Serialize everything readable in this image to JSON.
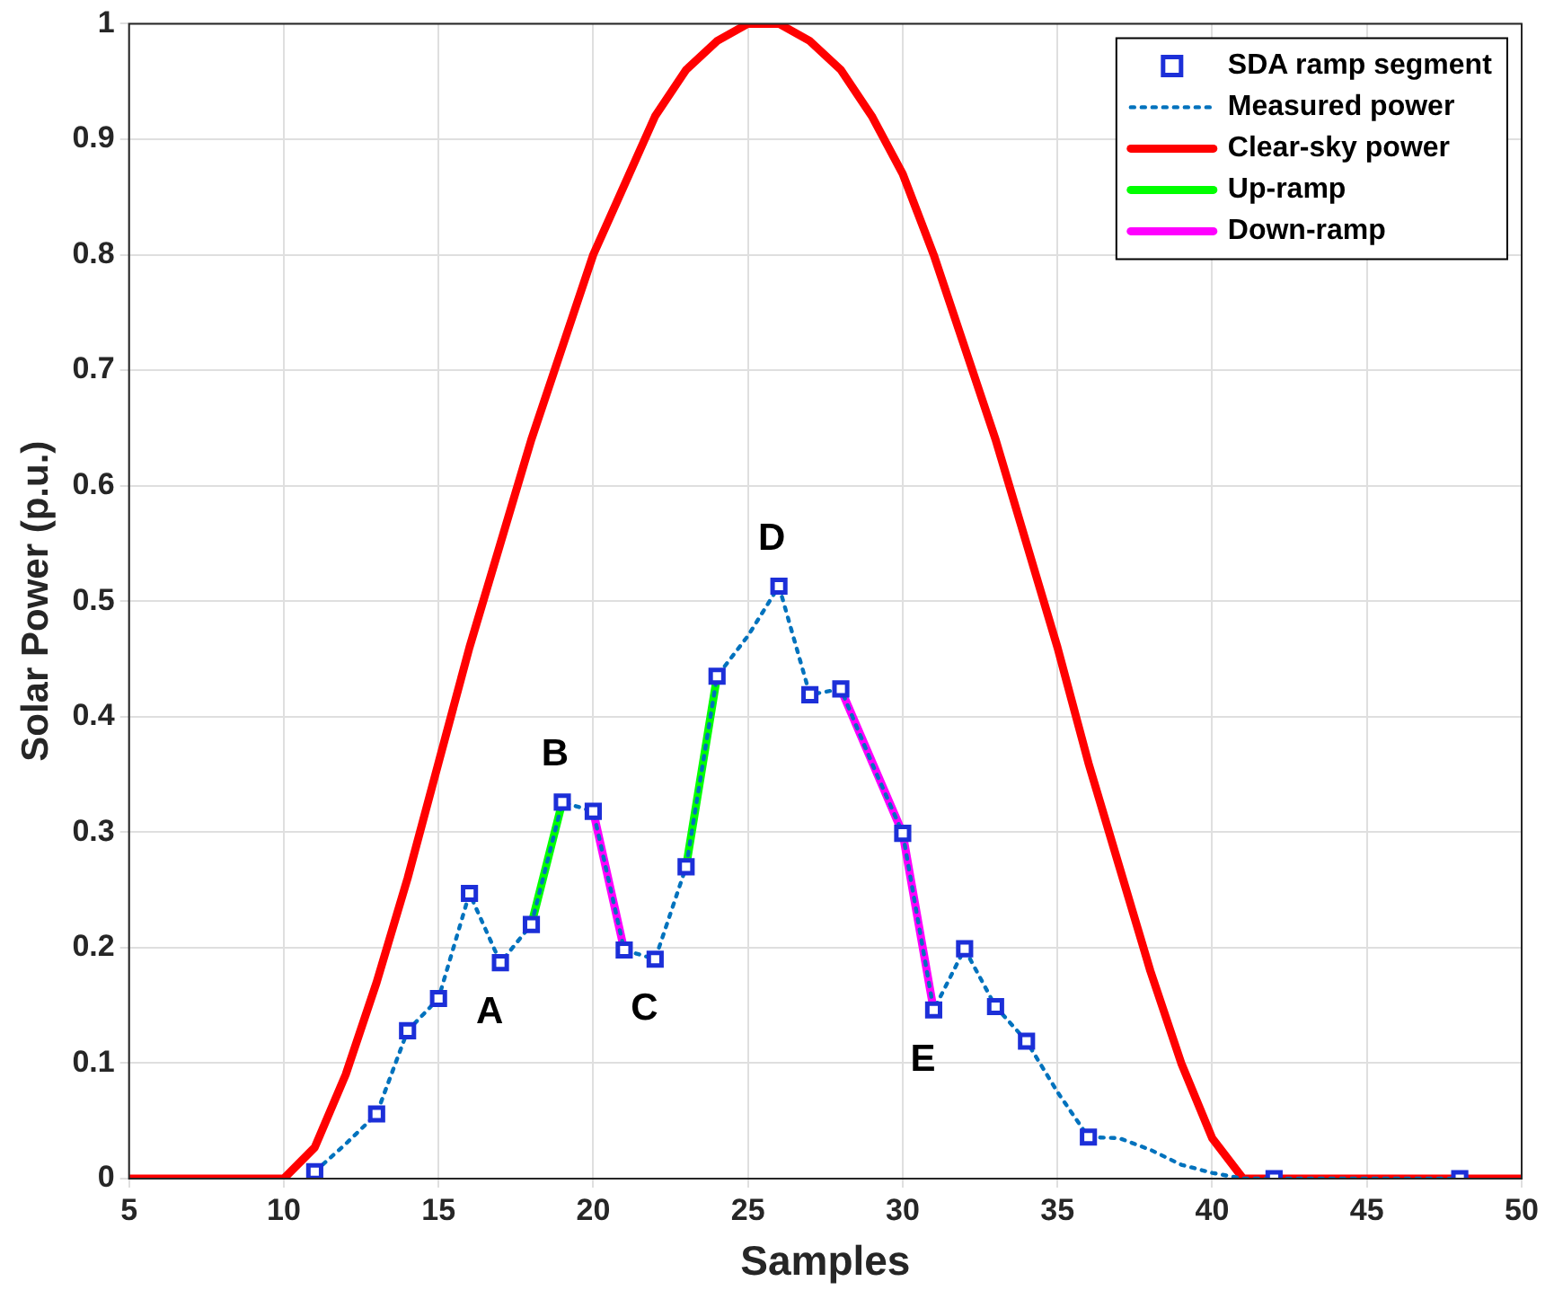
{
  "chart_data": {
    "type": "line",
    "xlabel": "Samples",
    "ylabel": "Solar Power (p.u.)",
    "xlim": [
      5,
      50
    ],
    "xticks": [
      5,
      10,
      15,
      20,
      25,
      30,
      35,
      40,
      45,
      50
    ],
    "ylim": [
      0,
      1
    ],
    "yticks": [
      0,
      0.1,
      0.2,
      0.3,
      0.4,
      0.5,
      0.6,
      0.7,
      0.8,
      0.9,
      1
    ],
    "grid": true,
    "legend": "top right",
    "series": [
      {
        "name": "SDA ramp segment",
        "type": "scatter",
        "marker": "square",
        "color": "#1c2fd8",
        "x": [
          11,
          13,
          14,
          15,
          16,
          17,
          18,
          19,
          20,
          21,
          22,
          23,
          24,
          26,
          27,
          28,
          30,
          31,
          32,
          33,
          34,
          36,
          42,
          48
        ],
        "values": [
          0.006,
          0.056,
          0.128,
          0.156,
          0.247,
          0.187,
          0.22,
          0.326,
          0.318,
          0.198,
          0.19,
          0.27,
          0.435,
          0.513,
          0.419,
          0.424,
          0.299,
          0.146,
          0.199,
          0.149,
          0.119,
          0.036,
          0,
          0
        ]
      },
      {
        "name": "Measured power",
        "type": "line",
        "line_style": "dotted",
        "marker": "none",
        "color": "#0072bd",
        "x": [
          11,
          12,
          13,
          14,
          15,
          16,
          17,
          18,
          19,
          20,
          21,
          22,
          23,
          24,
          25,
          26,
          27,
          28,
          29,
          30,
          31,
          32,
          33,
          34,
          35,
          36,
          37,
          38,
          39,
          40,
          41,
          42,
          48
        ],
        "values": [
          0.006,
          0.03,
          0.056,
          0.128,
          0.156,
          0.247,
          0.187,
          0.22,
          0.326,
          0.318,
          0.198,
          0.19,
          0.27,
          0.435,
          0.47,
          0.513,
          0.419,
          0.424,
          0.36,
          0.299,
          0.146,
          0.199,
          0.149,
          0.119,
          0.075,
          0.036,
          0.035,
          0.025,
          0.012,
          0.005,
          0,
          0,
          0
        ]
      },
      {
        "name": "Clear-sky power",
        "type": "line",
        "line_style": "solid",
        "marker": "none",
        "color": "#ff0000",
        "x": [
          5,
          10,
          11,
          12,
          13,
          14,
          15,
          16,
          17,
          18,
          19,
          20,
          21,
          22,
          23,
          24,
          25,
          26,
          27,
          28,
          29,
          30,
          31,
          32,
          33,
          34,
          35,
          36,
          37,
          38,
          39,
          40,
          41,
          50
        ],
        "values": [
          0,
          0,
          0.027,
          0.09,
          0.17,
          0.26,
          0.36,
          0.46,
          0.55,
          0.64,
          0.72,
          0.8,
          0.86,
          0.92,
          0.96,
          0.985,
          1,
          1,
          0.985,
          0.96,
          0.92,
          0.87,
          0.8,
          0.72,
          0.64,
          0.55,
          0.46,
          0.36,
          0.27,
          0.18,
          0.1,
          0.035,
          0,
          0
        ]
      },
      {
        "name": "Up-ramp",
        "type": "line",
        "line_style": "solid",
        "marker": "none",
        "color": "#00ff00",
        "x": [
          18,
          19,
          null,
          23,
          24
        ],
        "values": [
          0.22,
          0.326,
          null,
          0.27,
          0.435
        ]
      },
      {
        "name": "Down-ramp",
        "type": "line",
        "line_style": "solid",
        "marker": "none",
        "color": "#ff00ff",
        "x": [
          20,
          21,
          null,
          28,
          30,
          31
        ],
        "values": [
          0.318,
          0.198,
          null,
          0.424,
          0.299,
          0.146
        ]
      }
    ],
    "annotations": [
      {
        "text": "A",
        "x": 17,
        "y": 0.187
      },
      {
        "text": "B",
        "x": 19,
        "y": 0.326
      },
      {
        "text": "C",
        "x": 22,
        "y": 0.19
      },
      {
        "text": "D",
        "x": 26,
        "y": 0.513
      },
      {
        "text": "E",
        "x": 31,
        "y": 0.146
      }
    ]
  }
}
